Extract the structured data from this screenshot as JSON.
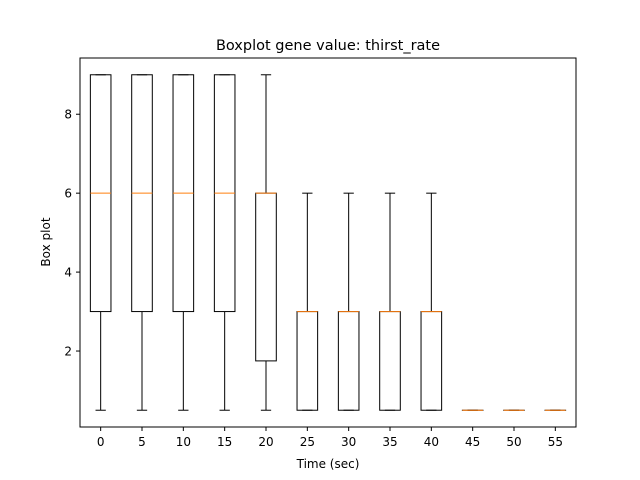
{
  "chart_data": {
    "type": "boxplot",
    "title": "Boxplot gene value: thirst_rate",
    "xlabel": "Time (sec)",
    "ylabel": "Box plot",
    "categories": [
      "0",
      "5",
      "10",
      "15",
      "20",
      "25",
      "30",
      "35",
      "40",
      "45",
      "50",
      "55"
    ],
    "boxes": [
      {
        "whislo": 0.5,
        "q1": 3,
        "med": 6,
        "q3": 9,
        "whishi": 9
      },
      {
        "whislo": 0.5,
        "q1": 3,
        "med": 6,
        "q3": 9,
        "whishi": 9
      },
      {
        "whislo": 0.5,
        "q1": 3,
        "med": 6,
        "q3": 9,
        "whishi": 9
      },
      {
        "whislo": 0.5,
        "q1": 3,
        "med": 6,
        "q3": 9,
        "whishi": 9
      },
      {
        "whislo": 0.5,
        "q1": 1.75,
        "med": 6,
        "q3": 6,
        "whishi": 9
      },
      {
        "whislo": 0.5,
        "q1": 0.5,
        "med": 3,
        "q3": 3,
        "whishi": 6
      },
      {
        "whislo": 0.5,
        "q1": 0.5,
        "med": 3,
        "q3": 3,
        "whishi": 6
      },
      {
        "whislo": 0.5,
        "q1": 0.5,
        "med": 3,
        "q3": 3,
        "whishi": 6
      },
      {
        "whislo": 0.5,
        "q1": 0.5,
        "med": 3,
        "q3": 3,
        "whishi": 6
      },
      {
        "whislo": 0.5,
        "q1": 0.5,
        "med": 0.5,
        "q3": 0.5,
        "whishi": 0.5
      },
      {
        "whislo": 0.5,
        "q1": 0.5,
        "med": 0.5,
        "q3": 0.5,
        "whishi": 0.5
      },
      {
        "whislo": 0.5,
        "q1": 0.5,
        "med": 0.5,
        "q3": 0.5,
        "whishi": 0.5
      }
    ],
    "yticks": [
      2,
      4,
      6,
      8
    ],
    "ylim": [
      0.075,
      9.425
    ],
    "grid": false,
    "colors": {
      "box": "#000000",
      "median": "#ff7f0e",
      "axes": "#000000",
      "background": "#ffffff"
    }
  }
}
